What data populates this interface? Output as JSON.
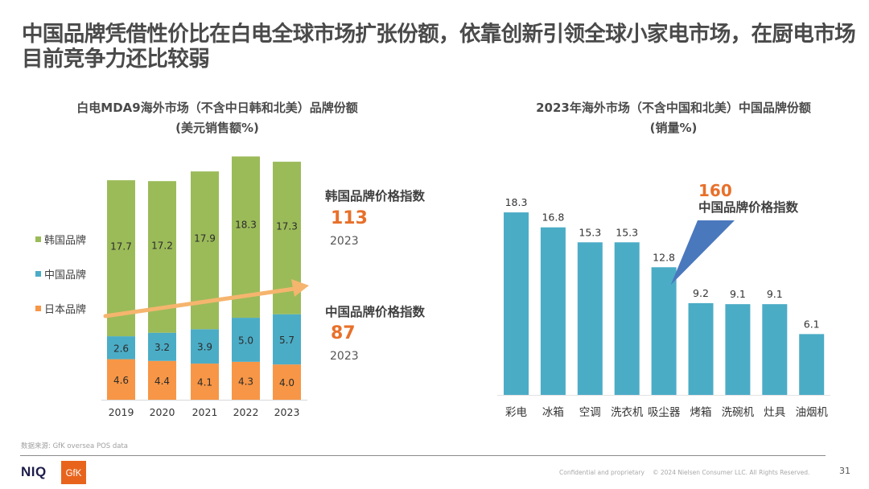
{
  "headline": "中国品牌凭借性价比在白电全球市场扩张份额，依靠创新引领全球小家电市场，在厨电市场目前竞争力还比较弱",
  "left_panel": {
    "title_line1": "白电MDA9海外市场（不含中日韩和北美）品牌份额",
    "title_line2": "(美元销售额%)",
    "legend": [
      {
        "label": "韩国品牌",
        "color": "#9bbb59"
      },
      {
        "label": "中国品牌",
        "color": "#4bacc6"
      },
      {
        "label": "日本品牌",
        "color": "#f79646"
      }
    ],
    "kpis": [
      {
        "label": "韩国品牌价格指数",
        "value": "113",
        "year": "2023"
      },
      {
        "label": "中国品牌价格指数",
        "value": "87",
        "year": "2023"
      }
    ]
  },
  "right_panel": {
    "title_line1": "2023年海外市场（不含中国和北美）中国品牌份额",
    "title_line2": "(销量%)",
    "callout": {
      "value": "160",
      "label": "中国品牌价格指数",
      "target_category": "吸尘器"
    }
  },
  "chart_data": [
    {
      "type": "bar",
      "stacked": true,
      "title": "白电MDA9海外市场（不含中日韩和北美）品牌份额 (美元销售额%)",
      "xlabel": "",
      "ylabel": "",
      "categories": [
        "2019",
        "2020",
        "2021",
        "2022",
        "2023"
      ],
      "series": [
        {
          "name": "日本品牌",
          "color": "#f79646",
          "values": [
            4.6,
            4.4,
            4.1,
            4.3,
            4.0
          ]
        },
        {
          "name": "中国品牌",
          "color": "#4bacc6",
          "values": [
            2.6,
            3.2,
            3.9,
            5.0,
            5.7
          ]
        },
        {
          "name": "韩国品牌",
          "color": "#9bbb59",
          "values": [
            17.7,
            17.2,
            17.9,
            18.3,
            17.3
          ]
        }
      ],
      "legend_position": "left",
      "grid": false,
      "annotation": "upward trend arrow across bars (orange)"
    },
    {
      "type": "bar",
      "title": "2023年海外市场（不含中国和北美）中国品牌份额 (销量%)",
      "xlabel": "",
      "ylabel": "",
      "categories": [
        "彩电",
        "冰箱",
        "空调",
        "洗衣机",
        "吸尘器",
        "烤箱",
        "洗碗机",
        "灶具",
        "油烟机"
      ],
      "values": [
        18.3,
        16.8,
        15.3,
        15.3,
        12.8,
        9.2,
        9.1,
        9.1,
        6.1
      ],
      "color": "#4bacc6",
      "grid": false,
      "annotations": [
        {
          "category": "吸尘器",
          "text": "160 中国品牌价格指数"
        }
      ]
    }
  ],
  "footer": {
    "source": "数据来源: GfK oversea POS data",
    "logo_niq": "NIQ",
    "logo_gfk": "GfK",
    "confidential": "Confidential and proprietary",
    "copyright": "© 2024 Nielsen Consumer LLC. All Rights Reserved.",
    "page_number": "31"
  }
}
